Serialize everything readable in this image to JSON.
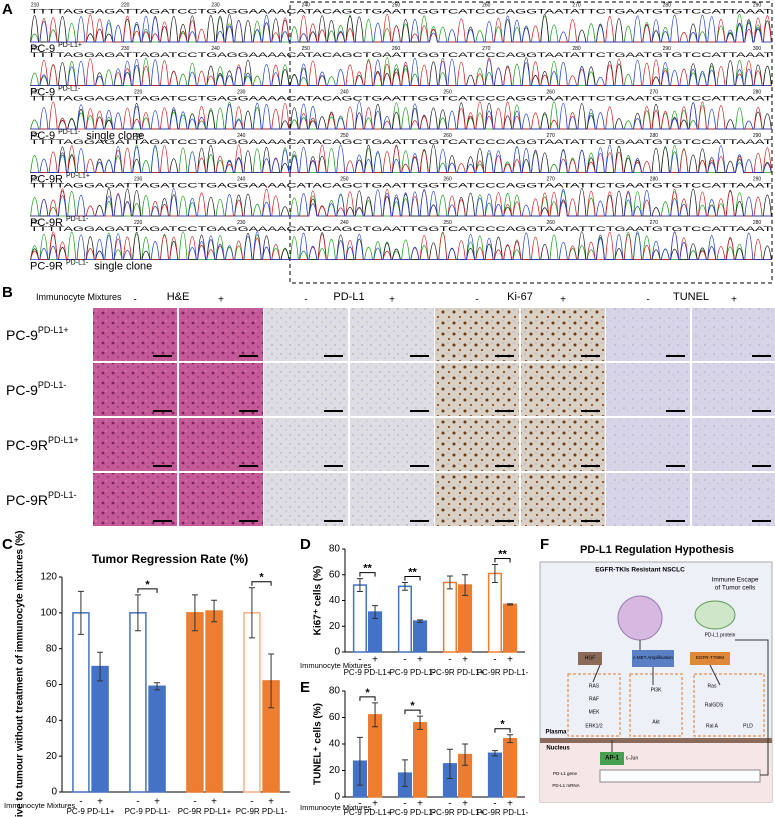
{
  "panel_labels": [
    "A",
    "B",
    "C",
    "D",
    "E",
    "F"
  ],
  "sequencing": {
    "rows": [
      {
        "sample": "PC-9",
        "genotype": "PD-L1+",
        "positions": [
          "210",
          "220",
          "230",
          "240",
          "250",
          "260",
          "270",
          "280",
          "290"
        ],
        "sequence": "TTTTAGGAGATTAGATCCTGAGGAAAACATACAGCTGAATTGGTCATCCCAGGTAATATTCTGAATGTGTCCATTAAAT"
      },
      {
        "sample": "PC-9",
        "genotype": "PD-L1-",
        "positions": [
          "220",
          "230",
          "240",
          "250",
          "260",
          "270",
          "280",
          "290",
          "300"
        ],
        "sequence": "TTTTAGGAGATTAGATCCTGAGGAAAACATACAGCTGAATTGGTCATCCCAGGTAATATTCTGAATGTGTCCATTAAAT"
      },
      {
        "sample": "PC-9",
        "genotype": "PD-L1-",
        "note": "single clone",
        "positions": [
          "210",
          "220",
          "230",
          "240",
          "250",
          "260",
          "270",
          "280"
        ],
        "sequence": "TTTTAGGAGATTAGATCCTGAGGAAAACATACAGCTGAATTGGTCATCCCAGGTAATATTCTGAATGTGTCCATTAAAT"
      },
      {
        "sample": "PC-9R",
        "genotype": "PD-L1+",
        "positions": [
          "220",
          "230",
          "240",
          "250",
          "260",
          "270",
          "280",
          "290"
        ],
        "sequence": "TTTTAGGAGATTAGATCCTGAGGAAAACATACAGCTGAATTGGTCATCCCAGGTAATATTCTGAATGTGTCCATTAAAT"
      },
      {
        "sample": "PC-9R",
        "genotype": "PD-L1-",
        "positions": [
          "220",
          "230",
          "240",
          "250",
          "260",
          "270",
          "280",
          "290"
        ],
        "sequence": "TTTTAGGAGATTAGATCCTGAGGAAAACATACAGCTGAATTGGTCATCCCAGGTAATATTCTGAATGTGTCCATTAAAT"
      },
      {
        "sample": "PC-9R",
        "genotype": "PD-L1-",
        "note": "single clone",
        "positions": [
          "210",
          "220",
          "230",
          "240",
          "250",
          "260",
          "270",
          "280"
        ],
        "sequence": "TTTTAGGAGATTAGATCCTGAGGAAAACATACAGCTGAATTGGTCATCCCAGGTAATATTCTGAATGTGTCCATTAAAT"
      }
    ]
  },
  "histology": {
    "stains": [
      "H&E",
      "PD-L1",
      "Ki-67",
      "TUNEL"
    ],
    "treatment_label": "Immunocyte Mixtures",
    "conditions": [
      "-",
      "+"
    ],
    "rows": [
      {
        "sample": "PC-9",
        "genotype": "PD-L1+"
      },
      {
        "sample": "PC-9",
        "genotype": "PD-L1-"
      },
      {
        "sample": "PC-9R",
        "genotype": "PD-L1+"
      },
      {
        "sample": "PC-9R",
        "genotype": "PD-L1-"
      }
    ]
  },
  "chart_data": [
    {
      "type": "bar",
      "title": "Tumor  Regression Rate (%)",
      "y_label": "relative to tumour without treatment of immunocyte mixtures (%)",
      "x_label": "Immunocyte Mixtures",
      "categories": [
        "PC-9 PD-L1+",
        "PC-9 PD-L1-",
        "PC-9R PD-L1+",
        "PC-9R PD-L1-"
      ],
      "series": [
        {
          "name": "-",
          "values": [
            100,
            100,
            100,
            100
          ],
          "errors": [
            12,
            10,
            10,
            14
          ],
          "colors": [
            "#4472c4",
            "#4472c4",
            "#ed7d31",
            "#f4b183"
          ],
          "hollow": [
            true,
            true,
            false,
            true
          ]
        },
        {
          "name": "+",
          "values": [
            70,
            59,
            101,
            62
          ],
          "errors": [
            8,
            2,
            6,
            15
          ],
          "colors": [
            "#4472c4",
            "#4472c4",
            "#ed7d31",
            "#ed7d31"
          ],
          "hollow": [
            false,
            false,
            false,
            false
          ]
        }
      ],
      "significance": [
        null,
        "*",
        null,
        "*"
      ],
      "ylim": [
        0,
        120
      ],
      "yticks": [
        0,
        20,
        40,
        60,
        80,
        100,
        120
      ]
    },
    {
      "type": "bar",
      "y_label": "Ki67⁺ cells (%)",
      "x_label": "Immunocyte Mixtures",
      "categories": [
        "PC-9 PD-L1+",
        "PC-9 PD-L1-",
        "PC-9R PD-L1+",
        "PC-9R PD-L1-"
      ],
      "series": [
        {
          "name": "-",
          "values": [
            52,
            51,
            54,
            61
          ],
          "errors": [
            5,
            3,
            5,
            7
          ],
          "colors": [
            "#4472c4",
            "#4472c4",
            "#ed7d31",
            "#ed7d31"
          ],
          "hollow": [
            true,
            true,
            true,
            true
          ]
        },
        {
          "name": "+",
          "values": [
            31,
            24,
            52,
            37
          ],
          "errors": [
            5,
            1,
            8,
            0.5
          ],
          "colors": [
            "#4472c4",
            "#4472c4",
            "#ed7d31",
            "#ed7d31"
          ],
          "hollow": [
            false,
            false,
            false,
            false
          ]
        }
      ],
      "significance": [
        "**",
        "**",
        null,
        "**"
      ],
      "ylim": [
        0,
        80
      ],
      "yticks": [
        0,
        20,
        40,
        60,
        80
      ]
    },
    {
      "type": "bar",
      "y_label": "TUNEL⁺ cells (%)",
      "x_label": "Immunocyte Mixtures",
      "categories": [
        "PC-9 PD-L1+",
        "PC-9 PD-L1-",
        "PC-9R PD-L1+",
        "PC-9R PD-L1-"
      ],
      "series": [
        {
          "name": "-",
          "values": [
            27,
            18,
            25,
            33
          ],
          "errors": [
            18,
            10,
            11,
            2
          ],
          "colors": [
            "#4472c4",
            "#4472c4",
            "#4472c4",
            "#4472c4"
          ],
          "hollow": [
            false,
            false,
            false,
            false
          ]
        },
        {
          "name": "+",
          "values": [
            62,
            56,
            32,
            44
          ],
          "errors": [
            9,
            5,
            8,
            3
          ],
          "colors": [
            "#ed7d31",
            "#ed7d31",
            "#ed7d31",
            "#ed7d31"
          ],
          "hollow": [
            false,
            false,
            false,
            false
          ]
        }
      ],
      "significance": [
        "*",
        "*",
        null,
        "*"
      ],
      "ylim": [
        0,
        80
      ],
      "yticks": [
        0,
        20,
        40,
        60,
        80
      ]
    }
  ],
  "hypothesis": {
    "title": "PD-L1 Regulation Hypothesis",
    "nodes": [
      "EGFR-TKIs Resistant NSCLC",
      "Immune  Escape",
      "of Tumor cells",
      "PD-L1 protein",
      "HGF",
      "c-MET Amplification",
      "EGFR-T790M",
      "RAS",
      "RAF",
      "MEK",
      "ERK1/2",
      "PI3K",
      "Akt",
      "Ras",
      "RalGDS",
      "Ral A",
      "PLD",
      "Plasma",
      "Nucleus",
      "AP-1",
      "c-Jun",
      "PD-L1 gene",
      "PD-L1 mRNA"
    ]
  }
}
